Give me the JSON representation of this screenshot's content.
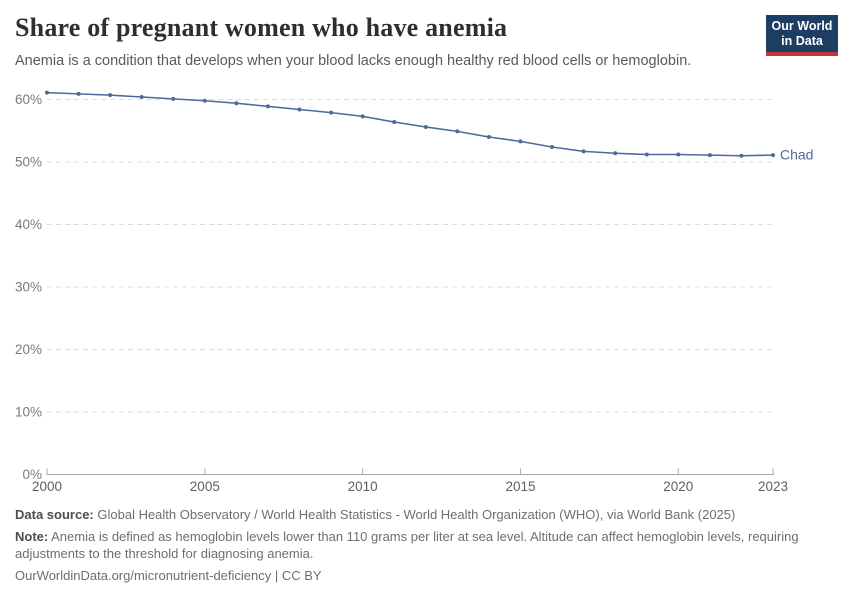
{
  "header": {
    "title": "Share of pregnant women who have anemia",
    "subtitle": "Anemia is a condition that develops when your blood lacks enough healthy red blood cells or hemoglobin.",
    "logo": {
      "line1": "Our World",
      "line2": "in Data"
    }
  },
  "chart_data": {
    "type": "line",
    "title": "Share of pregnant women who have anemia",
    "x": [
      2000,
      2001,
      2002,
      2003,
      2004,
      2005,
      2006,
      2007,
      2008,
      2009,
      2010,
      2011,
      2012,
      2013,
      2014,
      2015,
      2016,
      2017,
      2018,
      2019,
      2020,
      2021,
      2022,
      2023
    ],
    "series": [
      {
        "name": "Chad",
        "color": "#4C6A9C",
        "values": [
          61.1,
          60.9,
          60.7,
          60.4,
          60.1,
          59.8,
          59.4,
          58.9,
          58.4,
          57.9,
          57.3,
          56.4,
          55.6,
          54.9,
          54.0,
          53.3,
          52.4,
          51.7,
          51.4,
          51.2,
          51.2,
          51.1,
          51.0,
          51.1
        ]
      }
    ],
    "x_ticks": [
      2000,
      2005,
      2010,
      2015,
      2020,
      2023
    ],
    "y_ticks": [
      0,
      10,
      20,
      30,
      40,
      50,
      60
    ],
    "y_tick_suffix": "%",
    "xlim": [
      2000,
      2023
    ],
    "ylim": [
      0,
      63
    ],
    "grid": "horizontal-dashed",
    "legend_position": "end-of-line",
    "end_label": "Chad"
  },
  "footer": {
    "source_label": "Data source:",
    "source_text": "Global Health Observatory / World Health Statistics - World Health Organization (WHO), via World Bank (2025)",
    "note_label": "Note:",
    "note_text": "Anemia is defined as hemoglobin levels lower than 110 grams per liter at sea level. Altitude can affect hemoglobin levels, requiring adjustments to the threshold for diagnosing anemia.",
    "link": "OurWorldinData.org/micronutrient-deficiency | CC BY"
  },
  "colors": {
    "accent": "#4C6A9C",
    "grid": "#dcdcdc",
    "axis": "#a8a8a8",
    "y_tick_label": "#7a7a7a",
    "x_tick_label": "#5f5f5f",
    "logo_bg": "#1d3d63",
    "logo_bar": "#c5363c"
  }
}
